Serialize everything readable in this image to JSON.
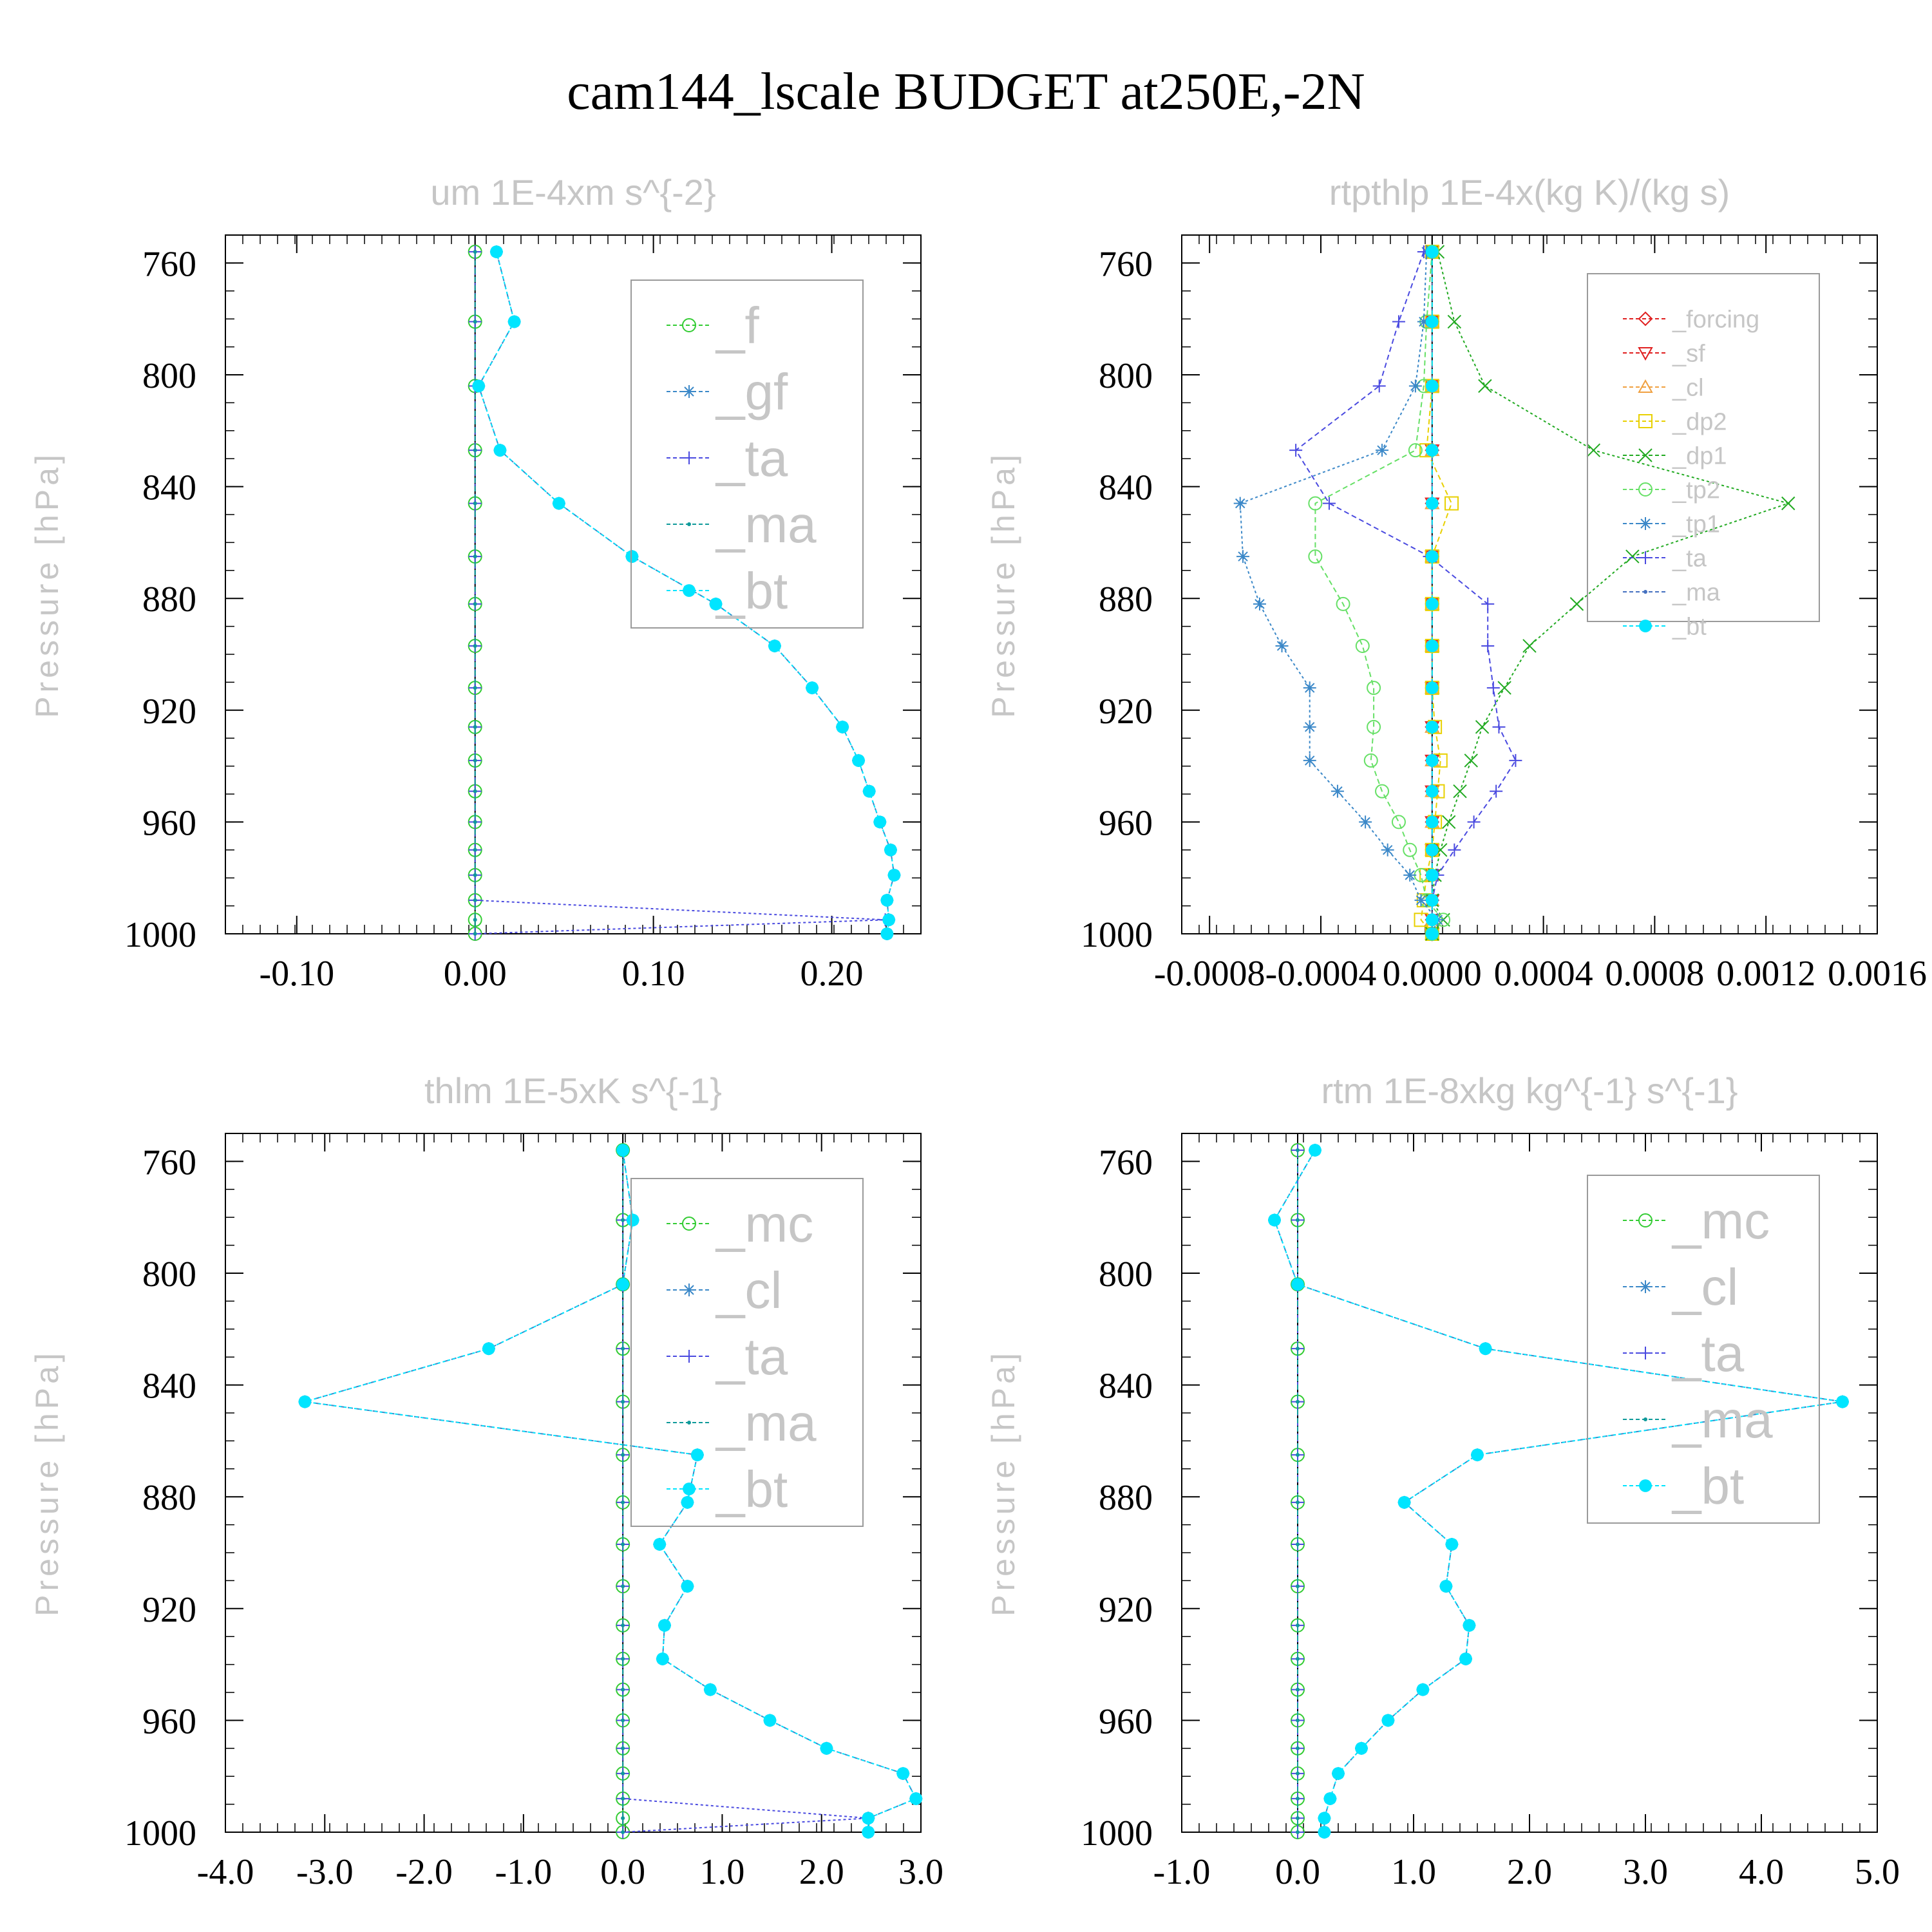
{
  "title": "cam144_lscale  BUDGET at250E,-2N",
  "colors": {
    "green": "#33cc33",
    "steelblue": "#3b88c8",
    "blue": "#4a4ae0",
    "teal": "#0f9a9a",
    "cyan": "#00e5ff",
    "red": "#e02020",
    "orange": "#f0a040",
    "yellow": "#e8d000",
    "darkgreen": "#22aa22",
    "lightgreen": "#66e066",
    "slate": "#4470c0"
  },
  "chart_data": [
    {
      "type": "line",
      "title": "um   1E-4xm s^{-2}",
      "ylabel": "Pressure [hPa]",
      "xlim": [
        -0.14,
        0.25
      ],
      "ylim": [
        1000,
        750
      ],
      "xticks": [
        "-0.10",
        "0.00",
        "0.10",
        "0.20"
      ],
      "xtick_values": [
        -0.1,
        0.0,
        0.1,
        0.2
      ],
      "yticks": [
        "760",
        "800",
        "840",
        "880",
        "920",
        "960",
        "1000"
      ],
      "levels": [
        756,
        781,
        804,
        827,
        846,
        865,
        882,
        897,
        912,
        926,
        938,
        949,
        960,
        970,
        979,
        988,
        995,
        1000
      ],
      "legend": [
        "_f",
        "_gf",
        "_ta",
        "_ma",
        "_bt"
      ],
      "series": [
        {
          "name": "_f",
          "color": "green",
          "marker": "circle",
          "values": [
            0,
            0,
            0,
            0,
            0,
            0,
            0,
            0,
            0,
            0,
            0,
            0,
            0,
            0,
            0,
            0,
            0,
            0
          ]
        },
        {
          "name": "_gf",
          "color": "steelblue",
          "marker": "star",
          "values": [
            0.012,
            0.022,
            0.002,
            0.014,
            0.047,
            0.088,
            0.135,
            0.168,
            0.189,
            0.206,
            0.215,
            0.221,
            0.227,
            0.233,
            0.235,
            0.231,
            0.232,
            0.231
          ]
        },
        {
          "name": "_ta",
          "color": "blue",
          "marker": "plus",
          "values": [
            0,
            0,
            0,
            0,
            0,
            0,
            0,
            0,
            0,
            0,
            0,
            0,
            0,
            0,
            0,
            0,
            0.23,
            0
          ]
        },
        {
          "name": "_ma",
          "color": "teal",
          "marker": "dot",
          "values": [
            0,
            0,
            0,
            0,
            0,
            0,
            0,
            0,
            0,
            0,
            0,
            0,
            0,
            0,
            0,
            0,
            0,
            0
          ]
        },
        {
          "name": "_bt",
          "color": "cyan",
          "marker": "filled",
          "values": [
            0.012,
            0.022,
            0.002,
            0.014,
            0.047,
            0.088,
            0.135,
            0.168,
            0.189,
            0.206,
            0.215,
            0.221,
            0.227,
            0.233,
            0.235,
            0.231,
            0.232,
            0.231
          ]
        }
      ]
    },
    {
      "type": "line",
      "title": "rtpthlp   1E-4x(kg K)/(kg s)",
      "ylabel": "Pressure [hPa]",
      "xlim": [
        -0.0009,
        0.0016
      ],
      "ylim": [
        1000,
        750
      ],
      "xticks": [
        "-0.0008",
        "-0.0004",
        "0.0000",
        "0.0004",
        "0.0008",
        "0.0012",
        "0.0016"
      ],
      "xtick_values": [
        -0.0008,
        -0.0004,
        0.0,
        0.0004,
        0.0008,
        0.0012,
        0.0016
      ],
      "yticks": [
        "760",
        "800",
        "840",
        "880",
        "920",
        "960",
        "1000"
      ],
      "levels": [
        756,
        781,
        804,
        827,
        846,
        865,
        882,
        897,
        912,
        926,
        938,
        949,
        960,
        970,
        979,
        988,
        995,
        1000
      ],
      "legend": [
        "_forcing",
        "_sf",
        "_cl",
        "_dp2",
        "_dp1",
        "_tp2",
        "_tp1",
        "_ta",
        "_ma",
        "_bt"
      ],
      "series": [
        {
          "name": "_forcing",
          "color": "red",
          "marker": "diamond",
          "values": [
            0,
            0,
            0,
            0,
            0,
            0,
            0,
            0,
            0,
            0,
            0,
            0,
            0,
            0,
            0,
            0,
            0,
            0
          ]
        },
        {
          "name": "_sf",
          "color": "red",
          "marker": "tri_down",
          "values": [
            0,
            0,
            0,
            0,
            0,
            0,
            0,
            0,
            0,
            0,
            0,
            0,
            0,
            0,
            0,
            0,
            0,
            0
          ]
        },
        {
          "name": "_cl",
          "color": "orange",
          "marker": "tri_up",
          "values": [
            0,
            0,
            0,
            0,
            0,
            0,
            0,
            0,
            0,
            0,
            0,
            0,
            0,
            0,
            0,
            0,
            0,
            0
          ]
        },
        {
          "name": "_dp2",
          "color": "yellow",
          "marker": "square",
          "values": [
            0,
            0,
            0,
            -2e-05,
            7e-05,
            0.0,
            0.0,
            0.0,
            0.0,
            1e-05,
            3e-05,
            2e-05,
            1e-05,
            0.0,
            -2e-05,
            -3e-05,
            -4e-05,
            0
          ]
        },
        {
          "name": "_dp1",
          "color": "darkgreen",
          "marker": "x",
          "values": [
            2e-05,
            8e-05,
            0.00019,
            0.00058,
            0.00128,
            0.00072,
            0.00052,
            0.00035,
            0.00026,
            0.00018,
            0.00014,
            0.0001,
            6e-05,
            3e-05,
            1e-05,
            0.0,
            4e-05,
            0
          ]
        },
        {
          "name": "_tp2",
          "color": "lightgreen",
          "marker": "circle",
          "values": [
            0,
            -2e-05,
            -3e-05,
            -6e-05,
            -0.00042,
            -0.00042,
            -0.00032,
            -0.00025,
            -0.00021,
            -0.00021,
            -0.00022,
            -0.00018,
            -0.00012,
            -8e-05,
            -4e-05,
            -2e-05,
            4e-05,
            0
          ]
        },
        {
          "name": "_tp1",
          "color": "steelblue",
          "marker": "star",
          "values": [
            -2e-05,
            -3e-05,
            -6e-05,
            -0.00018,
            -0.00069,
            -0.00068,
            -0.00062,
            -0.00054,
            -0.00044,
            -0.00044,
            -0.00044,
            -0.00034,
            -0.00024,
            -0.00016,
            -8e-05,
            -4e-05,
            2e-05,
            0
          ]
        },
        {
          "name": "_ta",
          "color": "blue",
          "marker": "plus",
          "values": [
            -3e-05,
            -0.00012,
            -0.00019,
            -0.00049,
            -0.00037,
            -1e-05,
            0.0002,
            0.0002,
            0.00022,
            0.00024,
            0.0003,
            0.00023,
            0.00015,
            8e-05,
            2e-05,
            0.0,
            0.0,
            0
          ]
        },
        {
          "name": "_ma",
          "color": "slate",
          "marker": "dot",
          "values": [
            0,
            0,
            0,
            0,
            0,
            0,
            0,
            0,
            0,
            0,
            0,
            0,
            0,
            0,
            0,
            0,
            0,
            0
          ]
        },
        {
          "name": "_bt",
          "color": "cyan",
          "marker": "filled",
          "values": [
            0,
            0,
            0,
            0,
            0,
            0,
            0,
            0,
            0,
            0,
            0,
            0,
            0,
            0,
            0,
            0,
            0,
            0
          ]
        }
      ]
    },
    {
      "type": "line",
      "title": "thlm   1E-5xK s^{-1}",
      "ylabel": "Pressure [hPa]",
      "xlim": [
        -4.0,
        3.0
      ],
      "ylim": [
        1000,
        750
      ],
      "xticks": [
        "-4.0",
        "-3.0",
        "-2.0",
        "-1.0",
        "0.0",
        "1.0",
        "2.0",
        "3.0"
      ],
      "xtick_values": [
        -4.0,
        -3.0,
        -2.0,
        -1.0,
        0.0,
        1.0,
        2.0,
        3.0
      ],
      "yticks": [
        "760",
        "800",
        "840",
        "880",
        "920",
        "960",
        "1000"
      ],
      "levels": [
        756,
        781,
        804,
        827,
        846,
        865,
        882,
        897,
        912,
        926,
        938,
        949,
        960,
        970,
        979,
        988,
        995,
        1000
      ],
      "legend": [
        "_mc",
        "_cl",
        "_ta",
        "_ma",
        "_bt"
      ],
      "series": [
        {
          "name": "_mc",
          "color": "green",
          "marker": "circle",
          "values": [
            0,
            0,
            0,
            0,
            0,
            0,
            0,
            0,
            0,
            0,
            0,
            0,
            0,
            0,
            0,
            0,
            0,
            0
          ]
        },
        {
          "name": "_cl",
          "color": "steelblue",
          "marker": "star",
          "values": [
            0.0,
            0.1,
            0.0,
            -1.35,
            -3.2,
            0.75,
            0.65,
            0.37,
            0.65,
            0.42,
            0.4,
            0.88,
            1.48,
            2.05,
            2.82,
            2.95,
            2.47,
            2.47
          ]
        },
        {
          "name": "_ta",
          "color": "blue",
          "marker": "plus",
          "values": [
            0,
            0,
            0,
            0,
            0,
            0,
            0,
            0,
            0,
            0,
            0,
            0,
            0,
            0,
            0,
            0,
            2.47,
            0
          ]
        },
        {
          "name": "_ma",
          "color": "teal",
          "marker": "dot",
          "values": [
            0,
            0,
            0,
            0,
            0,
            0,
            0,
            0,
            0,
            0,
            0,
            0,
            0,
            0,
            0,
            0,
            0,
            0
          ]
        },
        {
          "name": "_bt",
          "color": "cyan",
          "marker": "filled",
          "values": [
            0.0,
            0.1,
            0.0,
            -1.35,
            -3.2,
            0.75,
            0.65,
            0.37,
            0.65,
            0.42,
            0.4,
            0.88,
            1.48,
            2.05,
            2.82,
            2.95,
            2.47,
            2.47
          ]
        }
      ]
    },
    {
      "type": "line",
      "title": "rtm   1E-8xkg kg^{-1} s^{-1}",
      "ylabel": "Pressure [hPa]",
      "xlim": [
        -1.0,
        5.0
      ],
      "ylim": [
        1000,
        750
      ],
      "xticks": [
        "-1.0",
        "0.0",
        "1.0",
        "2.0",
        "3.0",
        "4.0",
        "5.0"
      ],
      "xtick_values": [
        -1.0,
        0.0,
        1.0,
        2.0,
        3.0,
        4.0,
        5.0
      ],
      "yticks": [
        "760",
        "800",
        "840",
        "880",
        "920",
        "960",
        "1000"
      ],
      "levels": [
        756,
        781,
        804,
        827,
        846,
        865,
        882,
        897,
        912,
        926,
        938,
        949,
        960,
        970,
        979,
        988,
        995,
        1000
      ],
      "legend": [
        "_mc",
        "_cl",
        "_ta",
        "_ma",
        "_bt"
      ],
      "series": [
        {
          "name": "_mc",
          "color": "green",
          "marker": "circle",
          "values": [
            0,
            0,
            0,
            0,
            0,
            0,
            0,
            0,
            0,
            0,
            0,
            0,
            0,
            0,
            0,
            0,
            0,
            0
          ]
        },
        {
          "name": "_cl",
          "color": "steelblue",
          "marker": "star",
          "values": [
            0.15,
            -0.2,
            0.0,
            1.62,
            4.7,
            1.55,
            0.92,
            1.33,
            1.28,
            1.48,
            1.45,
            1.08,
            0.78,
            0.55,
            0.35,
            0.28,
            0.23,
            0.23
          ]
        },
        {
          "name": "_ta",
          "color": "blue",
          "marker": "plus",
          "values": [
            0,
            0,
            0,
            0,
            0,
            0,
            0,
            0,
            0,
            0,
            0,
            0,
            0,
            0,
            0,
            0,
            0,
            0
          ]
        },
        {
          "name": "_ma",
          "color": "teal",
          "marker": "dot",
          "values": [
            0,
            0,
            0,
            0,
            0,
            0,
            0,
            0,
            0,
            0,
            0,
            0,
            0,
            0,
            0,
            0,
            0,
            0
          ]
        },
        {
          "name": "_bt",
          "color": "cyan",
          "marker": "filled",
          "values": [
            0.15,
            -0.2,
            0.0,
            1.62,
            4.7,
            1.55,
            0.92,
            1.33,
            1.28,
            1.48,
            1.45,
            1.08,
            0.78,
            0.55,
            0.35,
            0.28,
            0.23,
            0.23
          ]
        }
      ]
    }
  ]
}
